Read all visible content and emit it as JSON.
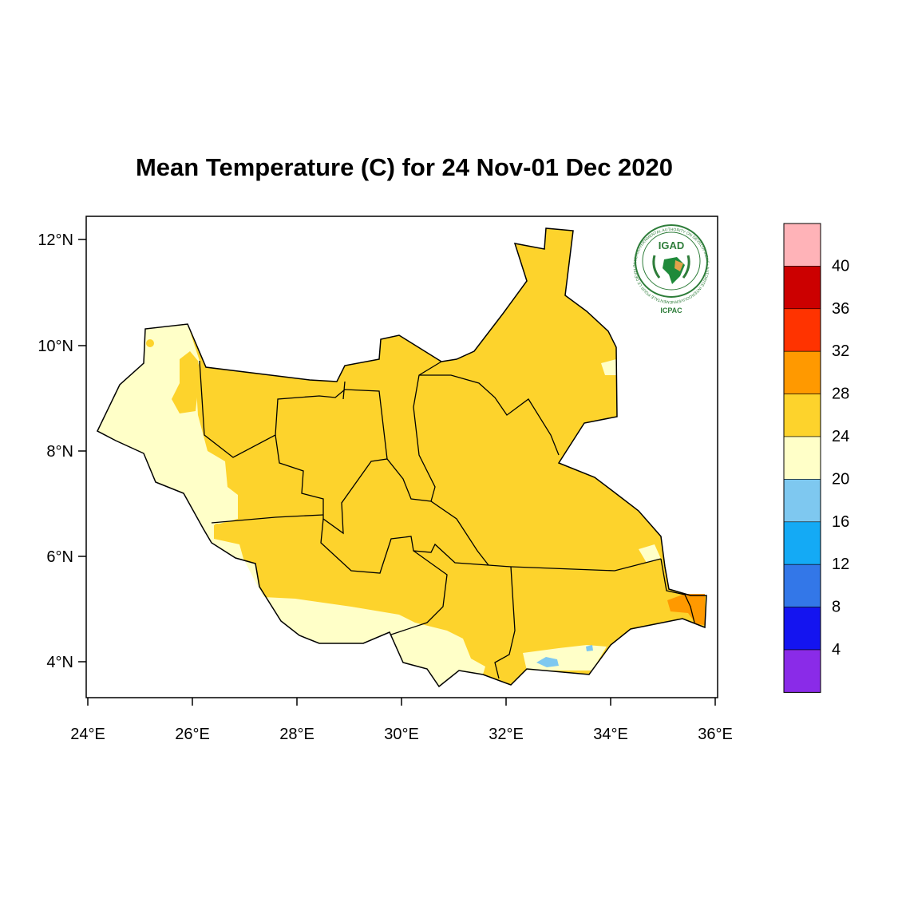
{
  "title": "Mean Temperature (C) for 24 Nov-01 Dec 2020",
  "map": {
    "lon_ticks": [
      "24°E",
      "26°E",
      "28°E",
      "30°E",
      "32°E",
      "34°E",
      "36°E"
    ],
    "lat_ticks": [
      "4°N",
      "6°N",
      "8°N",
      "10°N",
      "12°N"
    ],
    "lon_range": [
      24,
      36
    ],
    "lat_range": [
      3.4,
      12.4
    ]
  },
  "logo": {
    "name": "IGAD",
    "subtitle": "ICPAC",
    "ring_text": "INTERGOVERNMENTAL AUTHORITY ON DEVELOPMENT • AUTORITÉ INTERGOUVERNEMENTALE POUR LE DÉVELOPPEMENT"
  },
  "legend": {
    "labels": [
      "40",
      "36",
      "32",
      "28",
      "24",
      "20",
      "16",
      "12",
      "8",
      "4"
    ],
    "colors": [
      "#ffb3b8",
      "#cc0000",
      "#ff3300",
      "#ff9900",
      "#fdd32c",
      "#ffffc8",
      "#7ec8f0",
      "#14aaf5",
      "#3377e8",
      "#1414f0",
      "#8a2be8"
    ]
  },
  "fill_colors": {
    "band_20_24": "#ffffc8",
    "band_24_28": "#fdd32c",
    "band_28_32": "#ff9900",
    "band_16_20": "#7ec8f0"
  }
}
